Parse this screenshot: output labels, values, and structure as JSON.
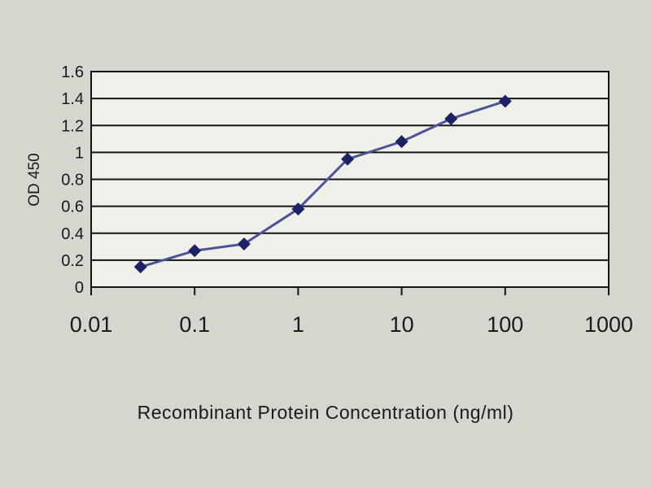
{
  "chart_data": {
    "type": "line",
    "title": "",
    "xlabel": "Recombinant Protein Concentration (ng/ml)",
    "ylabel": "OD 450",
    "x_scale": "log",
    "xlim": [
      0.01,
      1000
    ],
    "ylim": [
      0,
      1.6
    ],
    "x_ticks": [
      0.01,
      0.1,
      1,
      10,
      100,
      1000
    ],
    "x_tick_labels": [
      "0.01",
      "0.1",
      "1",
      "10",
      "100",
      "1000"
    ],
    "y_ticks": [
      0,
      0.2,
      0.4,
      0.6,
      0.8,
      1,
      1.2,
      1.4,
      1.6
    ],
    "y_tick_labels": [
      "0",
      "0.2",
      "0.4",
      "0.6",
      "0.8",
      "1",
      "1.2",
      "1.4",
      "1.6"
    ],
    "grid": "horizontal",
    "legend": false,
    "series": [
      {
        "name": "OD 450",
        "marker": "diamond",
        "color": "#4a5596",
        "marker_color": "#1c2266",
        "x": [
          0.03,
          0.1,
          0.3,
          1,
          3,
          10,
          30,
          100
        ],
        "y": [
          0.15,
          0.27,
          0.32,
          0.58,
          0.95,
          1.08,
          1.25,
          1.38
        ]
      }
    ]
  },
  "colors": {
    "background": "#d6d6ce",
    "plot_background": "#f0f0ea",
    "grid": "#141414",
    "text": "#1a1a1a"
  }
}
